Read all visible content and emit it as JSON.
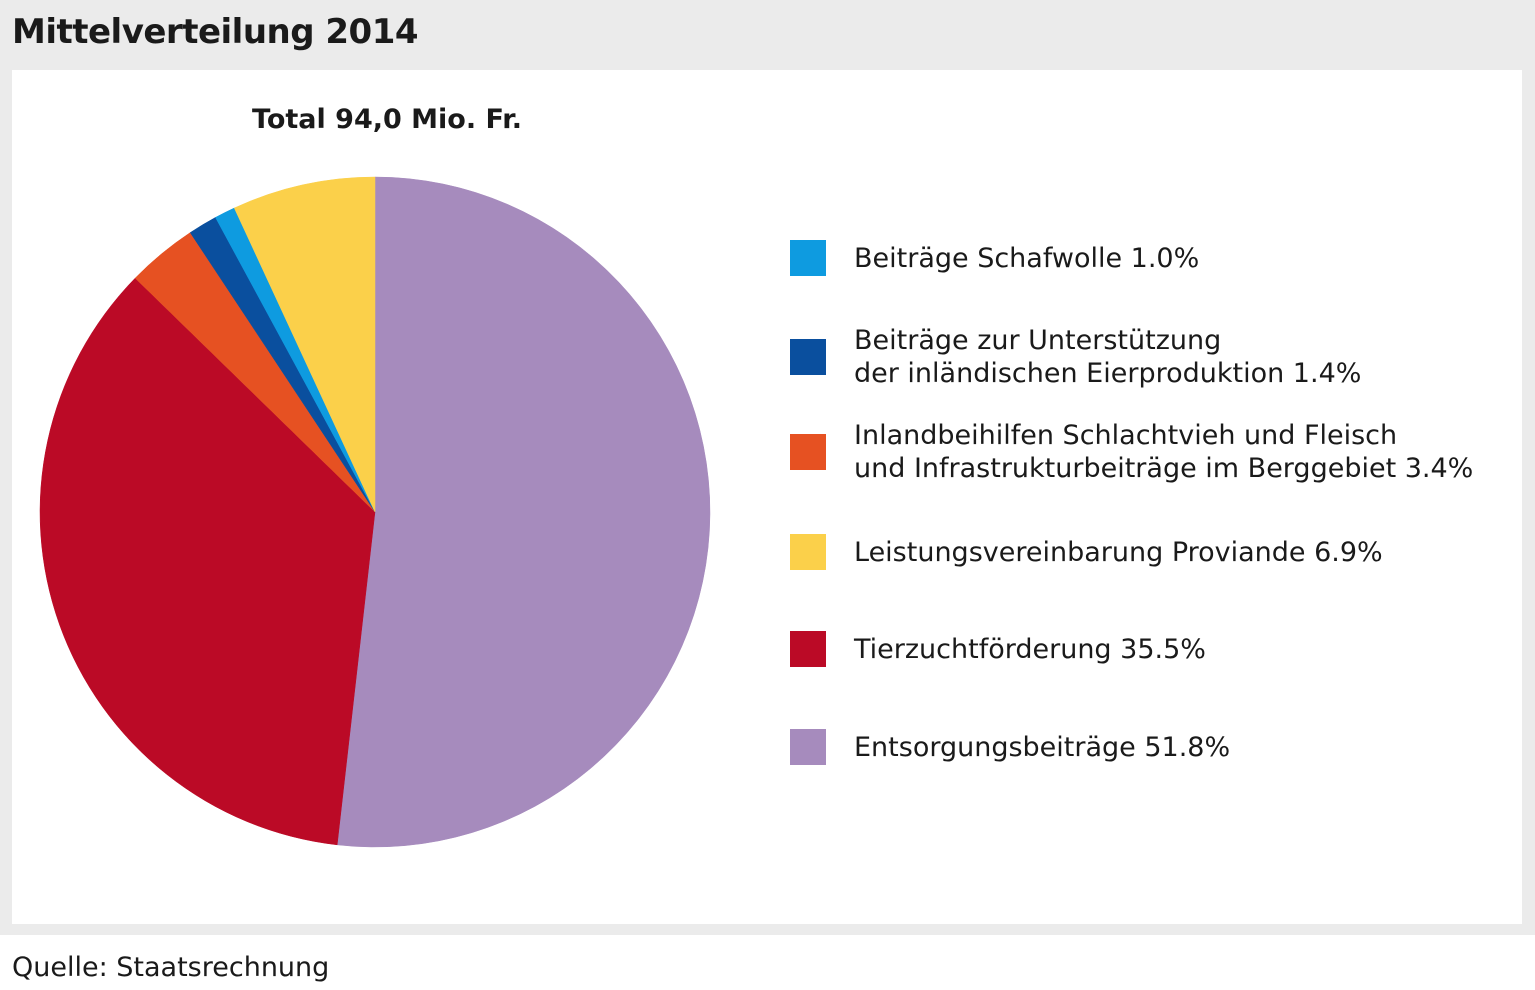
{
  "header": {
    "title": "Mittelverteilung 2014"
  },
  "total_label": "Total 94,0 Mio. Fr.",
  "source": "Quelle: Staatsrechnung",
  "chart_data": {
    "type": "pie",
    "title": "Mittelverteilung 2014",
    "subtitle": "Total 94,0 Mio. Fr.",
    "legend_position": "right",
    "slices": [
      {
        "label_lines": [
          "Entsorgungsbeiträge 51.8%"
        ],
        "value": 51.8,
        "color": "#a68bbd"
      },
      {
        "label_lines": [
          "Tierzuchtförderung 35.5%"
        ],
        "value": 35.5,
        "color": "#bb0a26"
      },
      {
        "label_lines": [
          "Inlandbeihilfen Schlachtvieh und Fleisch",
          "und Infrastrukturbeiträge im Berggebiet 3.4%"
        ],
        "value": 3.4,
        "color": "#e65122"
      },
      {
        "label_lines": [
          "Beiträge zur Unterstützung",
          "der inländischen Eierproduktion 1.4%"
        ],
        "value": 1.4,
        "color": "#0a4f9e"
      },
      {
        "label_lines": [
          "Beiträge Schafwolle 1.0%"
        ],
        "value": 1.0,
        "color": "#0e9be0"
      },
      {
        "label_lines": [
          "Leistungsvereinbarung Proviande 6.9%"
        ],
        "value": 6.9,
        "color": "#fbd04a"
      }
    ],
    "legend_order": [
      4,
      3,
      2,
      5,
      1,
      0
    ]
  }
}
